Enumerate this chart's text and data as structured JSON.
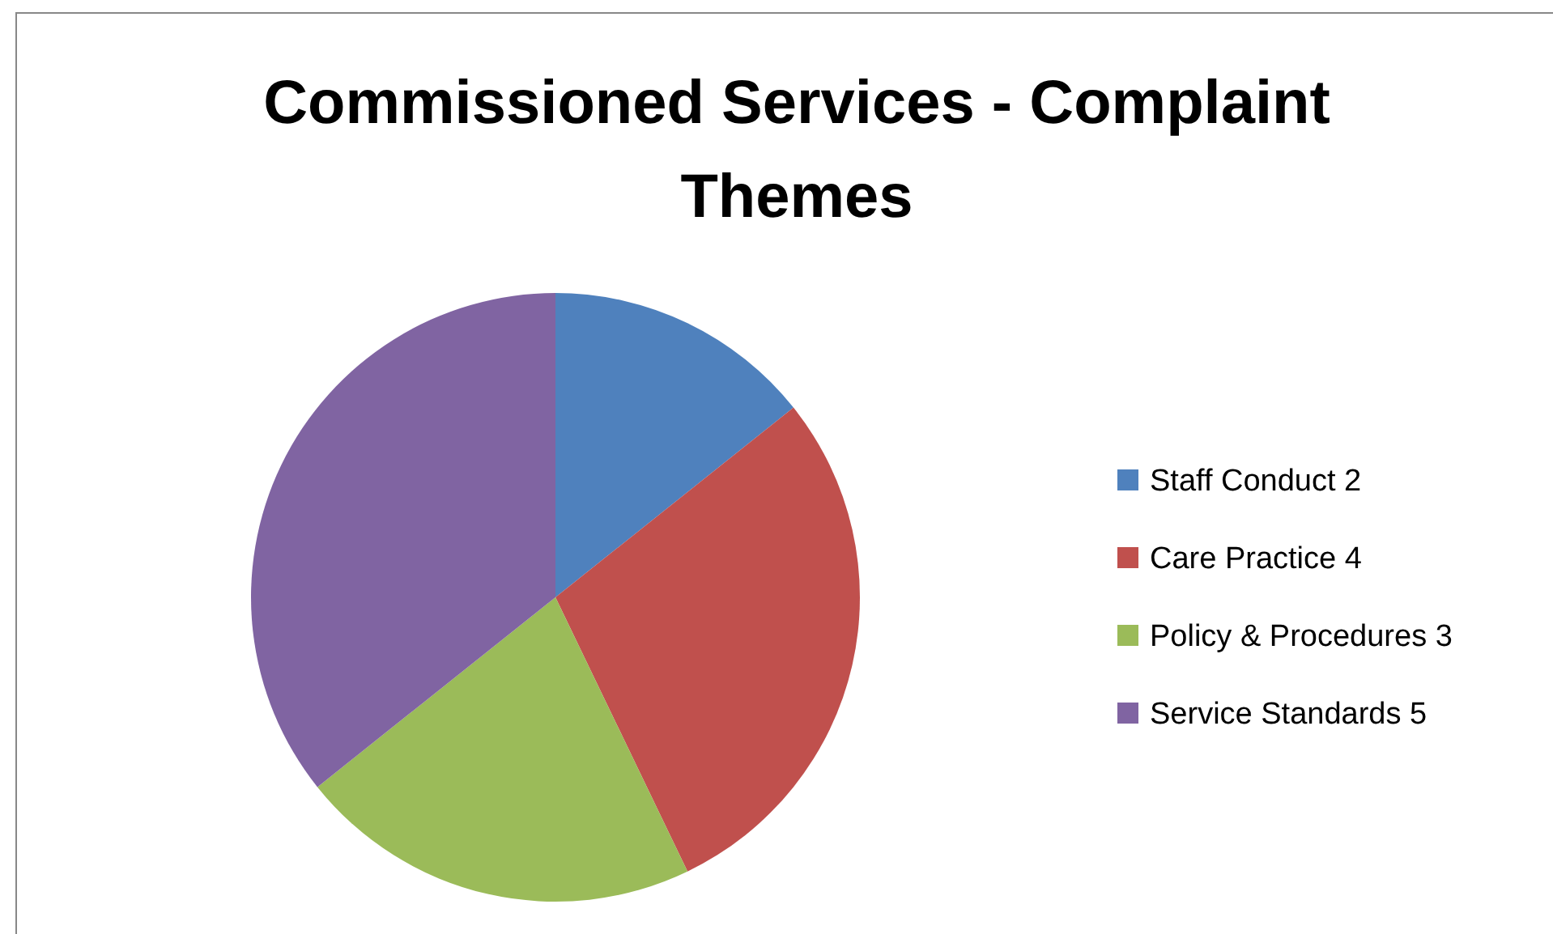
{
  "chart_data": {
    "type": "pie",
    "title": "Commissioned Services - Complaint Themes",
    "categories": [
      "Staff Conduct 2",
      "Care Practice 4",
      "Policy & Procedures 3",
      "Service Standards 5"
    ],
    "values": [
      2,
      4,
      3,
      5
    ],
    "colors": [
      "#4f81bd",
      "#c0504d",
      "#9bbb59",
      "#8064a2"
    ],
    "legend": "right"
  }
}
